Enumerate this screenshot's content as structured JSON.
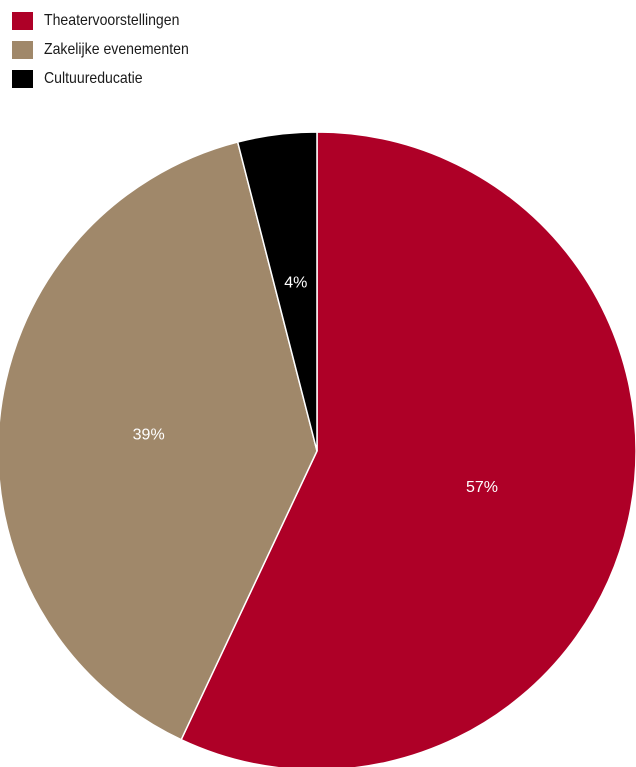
{
  "chart_data": {
    "type": "pie",
    "categories": [
      "Theatervoorstellingen",
      "Zakelijke evenementen",
      "Cultuureducatie"
    ],
    "values": [
      57,
      39,
      4
    ],
    "labels": [
      "57%",
      "39%",
      "4%"
    ],
    "colors": [
      "#ae0027",
      "#a0886a",
      "#000000"
    ],
    "label_colors": [
      "#ffffff",
      "#ffffff",
      "#ffffff"
    ],
    "legend_position": "top-left",
    "start": "12 o'clock",
    "direction": "clockwise"
  },
  "legend": {
    "items": [
      {
        "label": "Theatervoorstellingen",
        "color": "#ae0027"
      },
      {
        "label": "Zakelijke evenementen",
        "color": "#a0886a"
      },
      {
        "label": "Cultuureducatie",
        "color": "#000000"
      }
    ]
  }
}
